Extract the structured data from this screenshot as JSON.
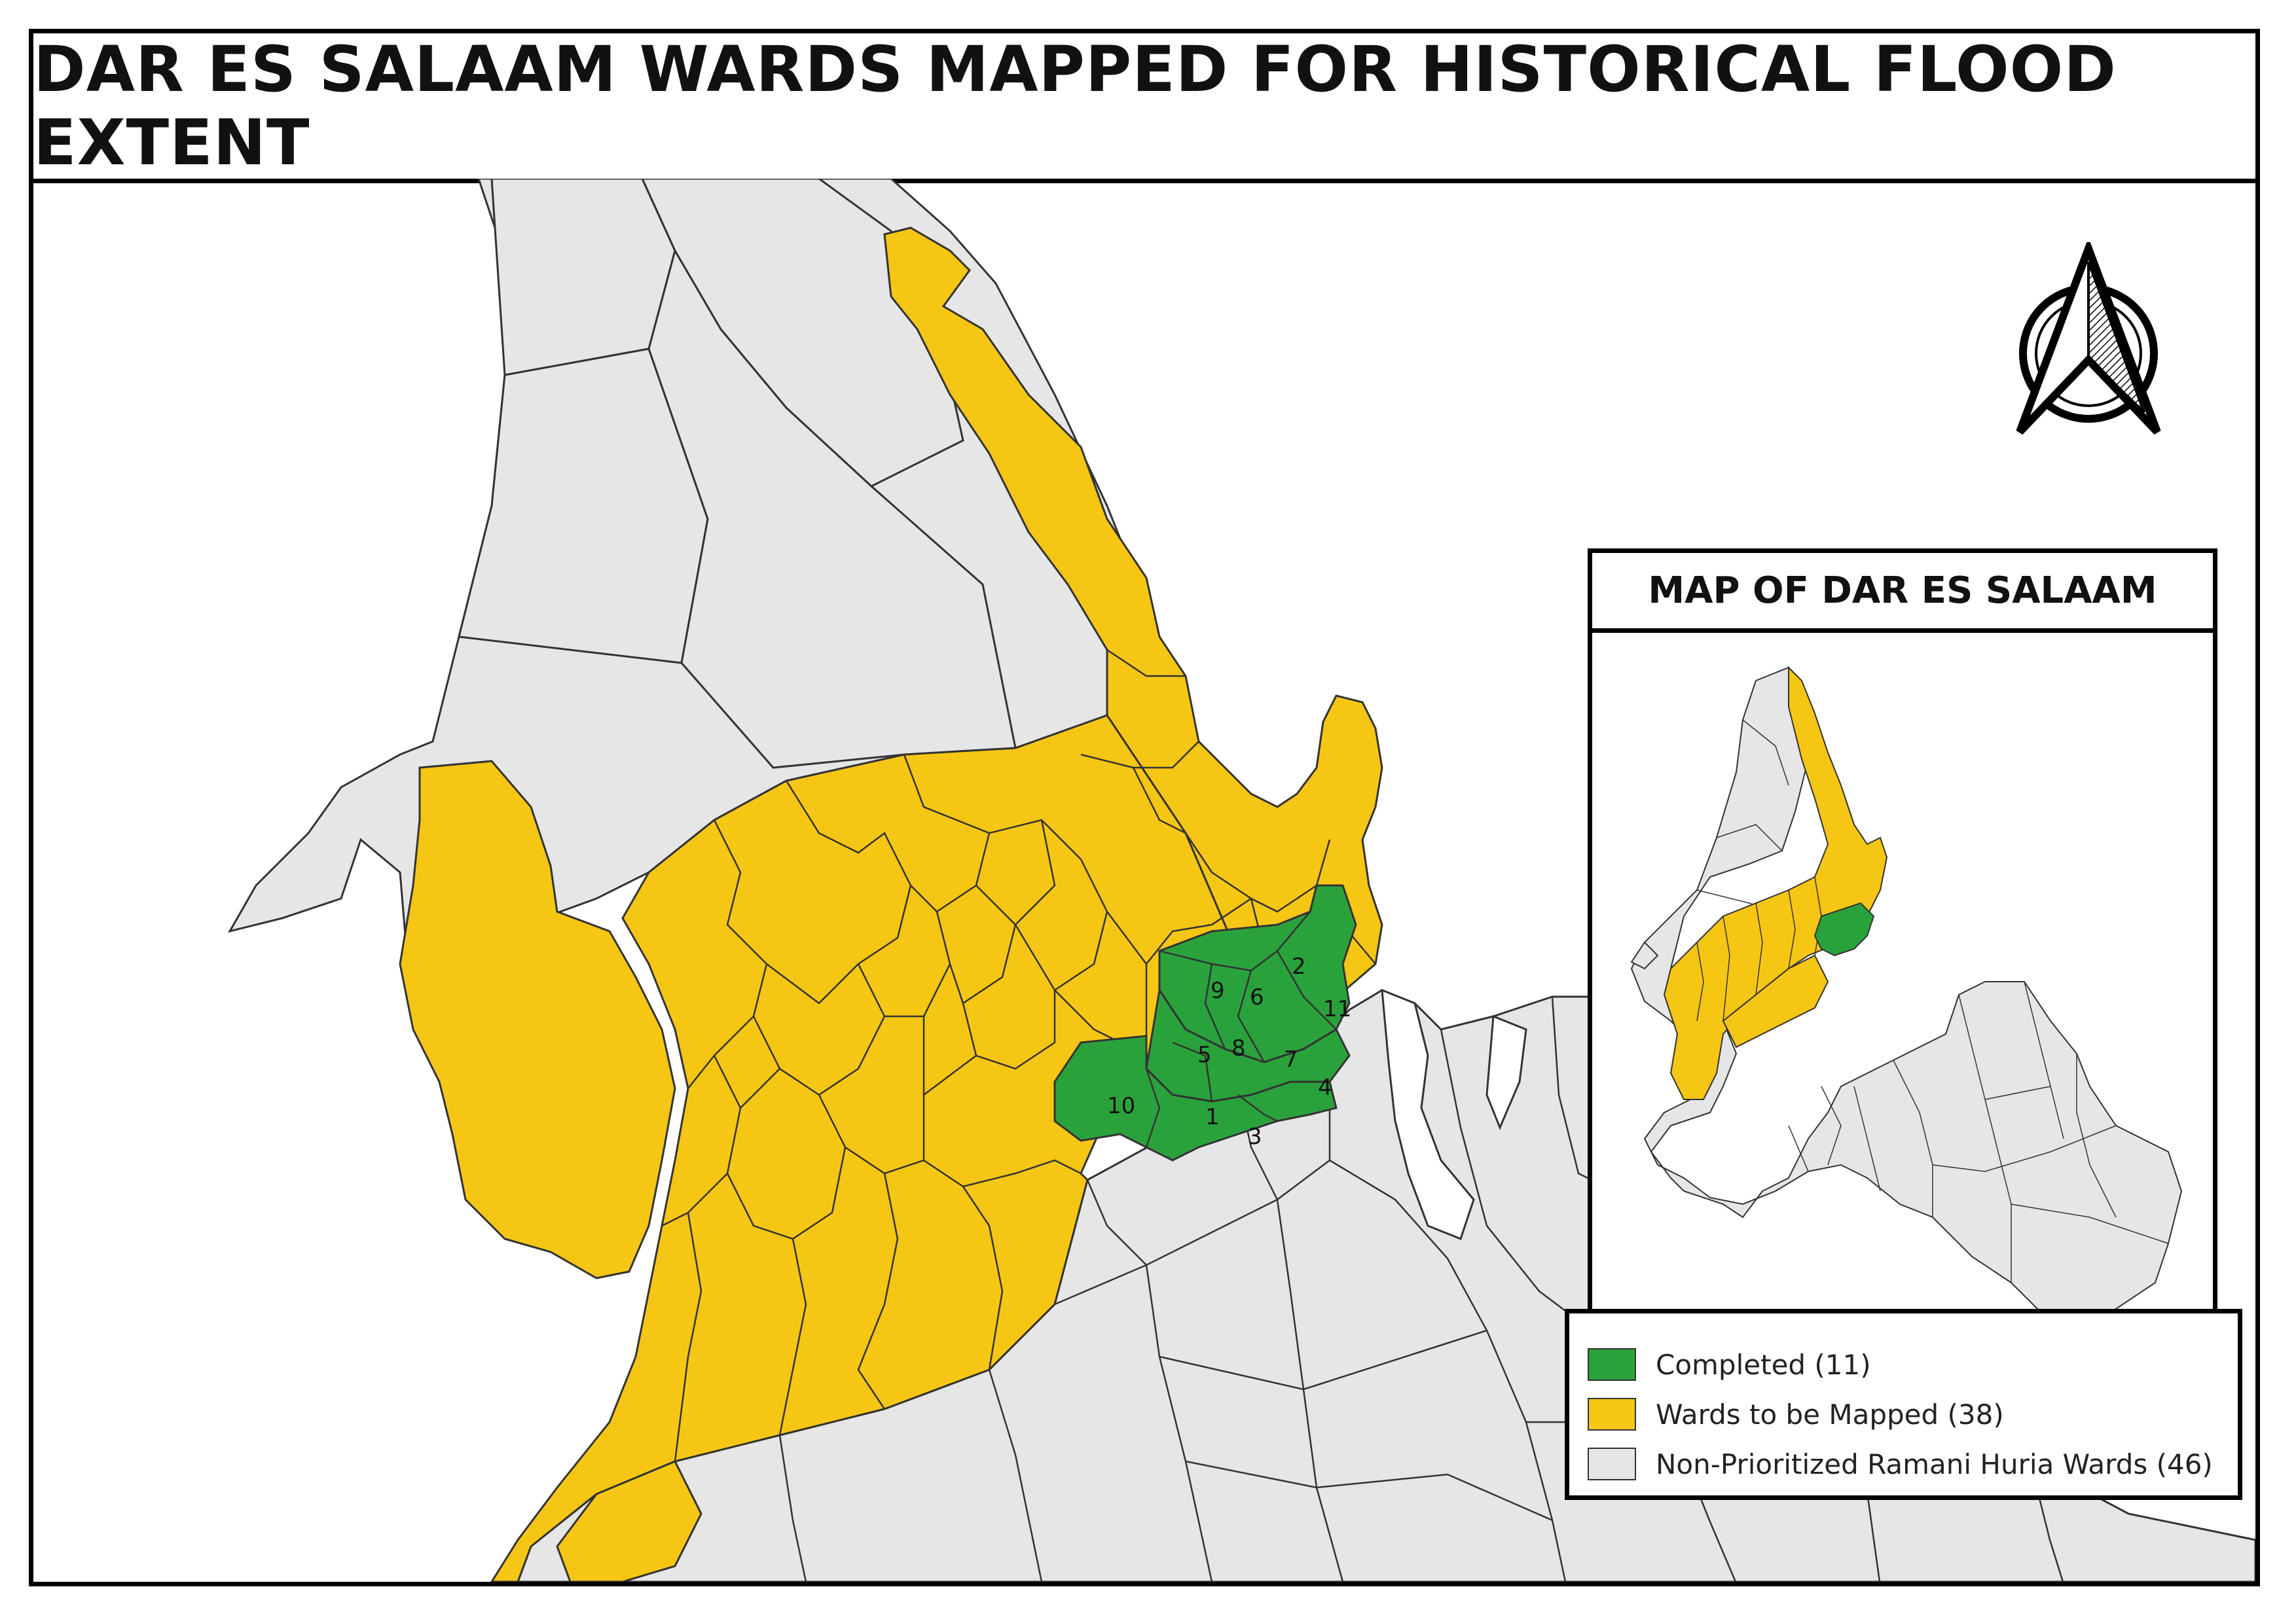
{
  "title": "DAR ES SALAAM WARDS MAPPED FOR HISTORICAL FLOOD EXTENT",
  "inset": {
    "title": "MAP OF DAR ES SALAAM"
  },
  "colors": {
    "completed": "#2aa23c",
    "to_be_mapped": "#f6c614",
    "non_prioritized": "#e6e6e6",
    "water": "#ffffff",
    "outline": "#333333"
  },
  "legend": {
    "items": [
      {
        "label": "Completed (11)",
        "color": "#2aa23c",
        "count": 11
      },
      {
        "label": "Wards to be Mapped (38)",
        "color": "#f6c614",
        "count": 38
      },
      {
        "label": "Non-Prioritized Ramani Huria Wards (46)",
        "color": "#e6e6e6",
        "count": 46
      }
    ]
  },
  "ward_labels": [
    "1",
    "2",
    "3",
    "4",
    "5",
    "6",
    "7",
    "8",
    "9",
    "10",
    "11"
  ],
  "north_arrow": {
    "icon": "north-arrow-icon"
  }
}
